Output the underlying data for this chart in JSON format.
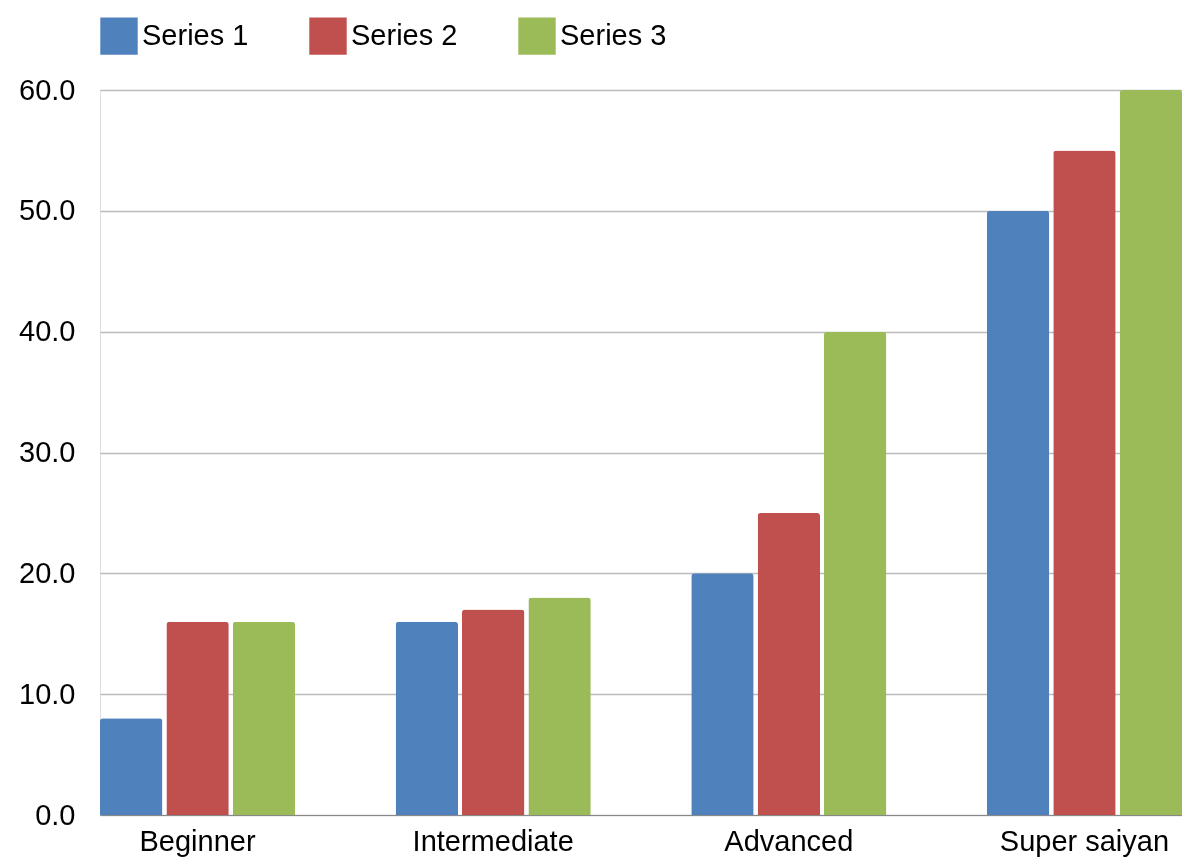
{
  "chart_data": {
    "type": "bar",
    "categories": [
      "Beginner",
      "Intermediate",
      "Advanced",
      "Super saiyan"
    ],
    "series": [
      {
        "name": "Series 1",
        "color": "#4f81bd",
        "values": [
          8,
          16,
          20,
          50
        ]
      },
      {
        "name": "Series 2",
        "color": "#c0504d",
        "values": [
          16,
          17,
          25,
          55
        ]
      },
      {
        "name": "Series 3",
        "color": "#9bbb59",
        "values": [
          16,
          18,
          40,
          60
        ]
      }
    ],
    "ylim": [
      0,
      60
    ],
    "yticks": [
      {
        "value": 0,
        "label": "0.0"
      },
      {
        "value": 10,
        "label": "10.0"
      },
      {
        "value": 20,
        "label": "20.0"
      },
      {
        "value": 30,
        "label": "30.0"
      },
      {
        "value": 40,
        "label": "40.0"
      },
      {
        "value": 50,
        "label": "50.0"
      },
      {
        "value": 60,
        "label": "60.0"
      }
    ],
    "grid": "y",
    "legend": "top"
  }
}
